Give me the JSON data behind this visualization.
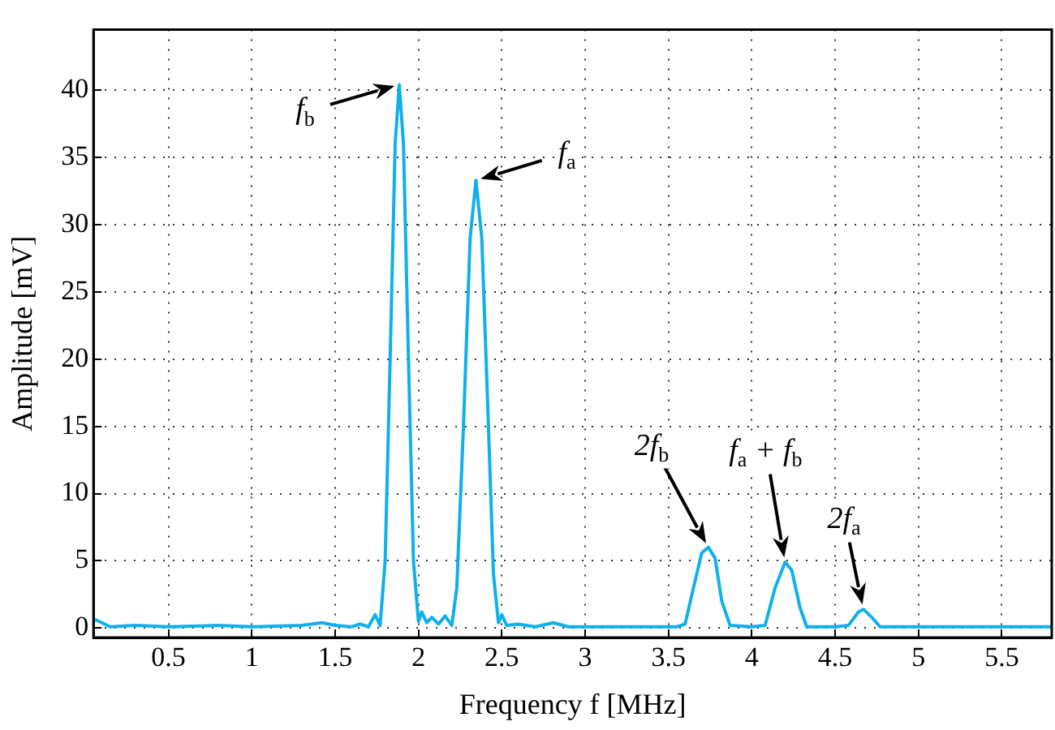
{
  "chart_data": {
    "type": "line",
    "xlabel": "Frequency f [MHz]",
    "ylabel": "Amplitude [mV]",
    "xlim": [
      0.05,
      5.8
    ],
    "xticks": [
      0.5,
      1,
      1.5,
      2,
      2.5,
      3,
      3.5,
      4,
      4.5,
      5,
      5.5
    ],
    "ylim": [
      -0.7,
      44.5
    ],
    "yticks": [
      0,
      5,
      10,
      15,
      20,
      25,
      30,
      35,
      40
    ],
    "grid": true,
    "marker": "none",
    "line_style": "solid",
    "series": [
      {
        "color": "#10b0ec",
        "x": [
          0.05,
          0.1,
          0.15,
          0.3,
          0.5,
          0.8,
          1.0,
          1.3,
          1.42,
          1.5,
          1.6,
          1.65,
          1.7,
          1.74,
          1.77,
          1.8,
          1.83,
          1.86,
          1.885,
          1.91,
          1.94,
          1.97,
          2.0,
          2.02,
          2.05,
          2.08,
          2.12,
          2.16,
          2.2,
          2.23,
          2.27,
          2.31,
          2.345,
          2.38,
          2.42,
          2.45,
          2.48,
          2.5,
          2.53,
          2.6,
          2.7,
          2.81,
          2.9,
          3.0,
          3.3,
          3.55,
          3.6,
          3.65,
          3.7,
          3.74,
          3.78,
          3.82,
          3.87,
          4.0,
          4.08,
          4.14,
          4.2,
          4.24,
          4.29,
          4.33,
          4.5,
          4.58,
          4.64,
          4.67,
          4.72,
          4.77,
          5.0,
          5.3,
          5.8
        ],
        "values": [
          0.7,
          0.4,
          0.1,
          0.2,
          0.1,
          0.2,
          0.1,
          0.2,
          0.4,
          0.2,
          0.1,
          0.3,
          0.1,
          1.0,
          0.2,
          5,
          20,
          36,
          40.4,
          36,
          20,
          5,
          0.5,
          1.2,
          0.4,
          0.8,
          0.3,
          0.9,
          0.2,
          3,
          15,
          29,
          33.3,
          29,
          15,
          4,
          0.4,
          1.0,
          0.2,
          0.3,
          0.1,
          0.4,
          0.1,
          0.1,
          0.1,
          0.1,
          0.3,
          3,
          5.6,
          6.0,
          5.2,
          2,
          0.2,
          0.1,
          0.2,
          3,
          4.9,
          4.3,
          1.5,
          0.1,
          0.1,
          0.2,
          1.2,
          1.4,
          0.8,
          0.1,
          0.1,
          0.1,
          0.1
        ]
      }
    ],
    "annotations": [
      {
        "text": "f$_{b}$",
        "x": 1.885,
        "y": 40.4
      },
      {
        "text": "f$_{a}$",
        "x": 2.345,
        "y": 33.3
      },
      {
        "text": "2f$_{b}$",
        "x": 3.74,
        "y": 6.0
      },
      {
        "text": "f$_{a}$ + f$_{b}$",
        "x": 4.2,
        "y": 4.9
      },
      {
        "text": "2f$_{a}$",
        "x": 4.67,
        "y": 1.4
      }
    ]
  }
}
